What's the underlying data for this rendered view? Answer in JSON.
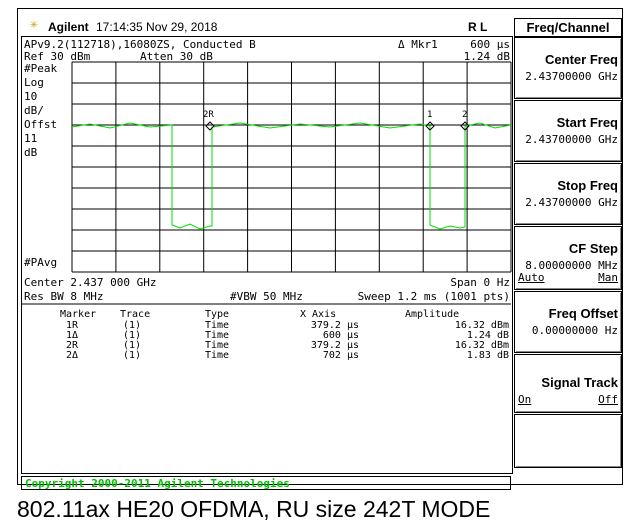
{
  "header": {
    "brand": "Agilent",
    "datetime": "17:14:35  Nov 29, 2018",
    "mode": "R L"
  },
  "info": {
    "line1": "APv9.2(112718),16080ZS, Conducted B",
    "marker_label": "Δ Mkr1",
    "marker_x": "600 μs",
    "ref": "Ref 30 dBm",
    "atten": "Atten 30 dB",
    "marker_y": "1.24 dB"
  },
  "scale_labels": [
    "#Peak",
    "Log",
    "10",
    "dB/",
    "Offst",
    "11",
    "dB"
  ],
  "avg": "#PAvg",
  "trace_markers": [
    "2R",
    "1",
    "2"
  ],
  "status": {
    "center": "Center 2.437 000 GHz",
    "span": "Span 0 Hz",
    "rbw": "Res BW 8 MHz",
    "vbw": "#VBW 50 MHz",
    "sweep": "Sweep 1.2 ms (1001 pts)"
  },
  "marker_table": {
    "headers": [
      "Marker",
      "Trace",
      "Type",
      "X Axis",
      "Amplitude"
    ],
    "rows": [
      [
        "1R",
        "(1)",
        "Time",
        "379.2 μs",
        "16.32 dBm"
      ],
      [
        "1Δ",
        "(1)",
        "Time",
        "600 μs",
        "1.24 dB"
      ],
      [
        "2R",
        "(1)",
        "Time",
        "379.2 μs",
        "16.32 dBm"
      ],
      [
        "2Δ",
        "(1)",
        "Time",
        "702 μs",
        "1.83 dB"
      ]
    ]
  },
  "menu": {
    "title": "Freq/Channel",
    "keys": [
      {
        "label": "Center Freq",
        "value": "2.43700000 GHz"
      },
      {
        "label": "Start Freq",
        "value": "2.43700000 GHz"
      },
      {
        "label": "Stop Freq",
        "value": "2.43700000 GHz"
      },
      {
        "label": "CF Step",
        "value": "8.00000000 MHz",
        "options": [
          "Auto",
          "Man"
        ]
      },
      {
        "label": "Freq Offset",
        "value": "0.00000000 Hz"
      },
      {
        "label": "Signal Track",
        "options": [
          "On",
          "Off"
        ]
      }
    ]
  },
  "copyright": "Copyright 2000-2011 Agilent Technologies",
  "caption": "802.11ax HE20 OFDMA, RU size 242T MODE"
}
